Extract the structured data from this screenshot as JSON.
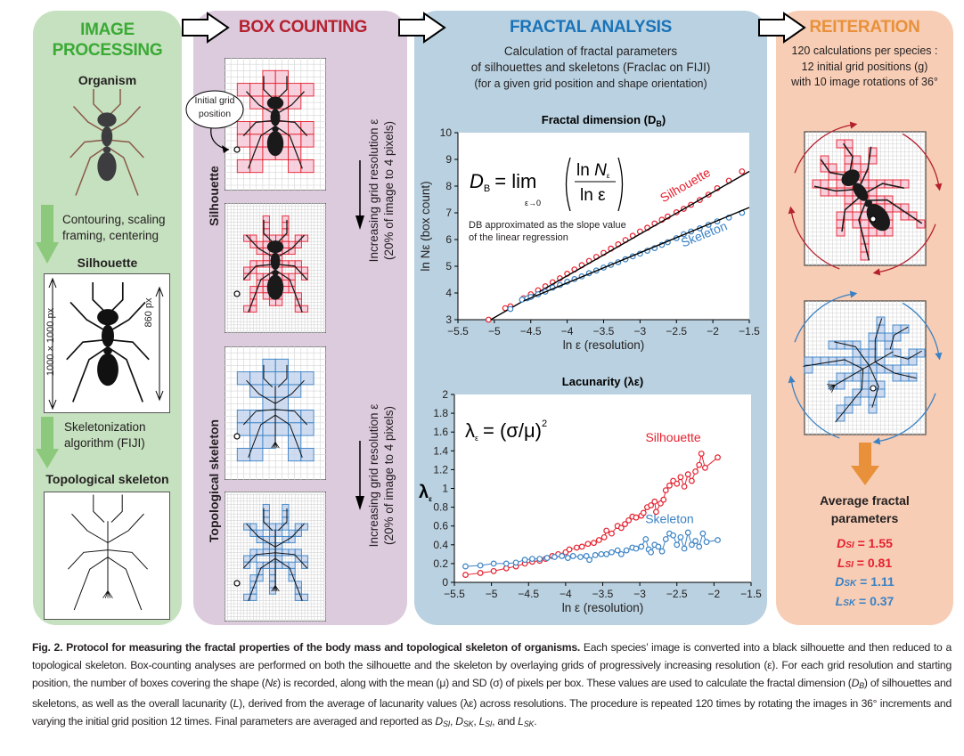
{
  "colors": {
    "green_panel": "#c6e1bf",
    "green_title": "#3aaa35",
    "green_arrow": "#8dc97c",
    "purple_panel": "#dccadd",
    "purple_title": "#b5202e",
    "blue_panel": "#b9d1e0",
    "blue_title": "#1a73b8",
    "orange_panel": "#f7cdb5",
    "orange_title": "#e8913a",
    "silhouette": "#e5202e",
    "skeleton": "#3a82c4",
    "silhouette_box_fill": "#f6c9d8",
    "skeleton_box_fill": "#c5d5ee"
  },
  "panels": {
    "image_processing": {
      "title_line1": "IMAGE",
      "title_line2": "PROCESSING",
      "organism": "Organism",
      "step1_line1": "Contouring, scaling",
      "step1_line2": "framing, centering",
      "silhouette": "Silhouette",
      "dim_frame": "1000 × 1000 px",
      "dim_body": "860 px",
      "step2_line1": "Skeletonization",
      "step2_line2": "algorithm (FIJI)",
      "skeleton": "Topological skeleton"
    },
    "box_counting": {
      "title": "BOX COUNTING",
      "callout_line1": "Initial grid",
      "callout_line2": "position",
      "row_silhouette": "Silhouette",
      "row_skeleton": "Topological skeleton",
      "resolution_line1": "Increasing grid resolution ε",
      "resolution_line2": "(20% of image to 4 pixels)"
    },
    "fractal_analysis": {
      "title": "FRACTAL ANALYSIS",
      "desc_line1": "Calculation of fractal parameters",
      "desc_line2": "of silhouettes and skeletons (Fraclac on FIJI)",
      "desc_line3": "(for a given grid position and shape orientation)"
    },
    "reiteration": {
      "title": "REITERATION",
      "desc_line1": "120 calculations per species :",
      "desc_line2": "12 initial grid positions (g)",
      "desc_line3": "with 10 image rotations of 36°",
      "results_title_line1": "Average fractal",
      "results_title_line2": "parameters",
      "results": [
        {
          "symbol": "D",
          "sub": "SI",
          "value": " = 1.55",
          "series": "silhouette"
        },
        {
          "symbol": "L",
          "sub": "SI",
          "value": " = 0.81",
          "series": "silhouette"
        },
        {
          "symbol": "D",
          "sub": "SK",
          "value": " = 1.11",
          "series": "skeleton"
        },
        {
          "symbol": "L",
          "sub": "SK",
          "value": " = 0.37",
          "series": "skeleton"
        }
      ]
    }
  },
  "chart_data": [
    {
      "type": "scatter",
      "title": "Fractal dimension (D",
      "title_sub": "B",
      "title_end": ")",
      "xlabel": "ln ε (resolution)",
      "ylabel": "ln Nε (box count)",
      "xlim": [
        -5.5,
        -1.5
      ],
      "ylim": [
        3,
        10
      ],
      "x_ticks": [
        -5.5,
        -5,
        -4.5,
        -4,
        -3.5,
        -3,
        -2.5,
        -2,
        -1.5
      ],
      "y_ticks": [
        3,
        4,
        5,
        6,
        7,
        8,
        9,
        10
      ],
      "grid": false,
      "formula": {
        "lhs": "D",
        "lhs_sub": "B",
        "eq": "= lim",
        "limit": "ε→0",
        "num": "ln  N",
        "num_sub": "ε",
        "den": "ln  ε"
      },
      "note_line1": "DB approximated as the slope value",
      "note_line2": "of the linear regression",
      "series": [
        {
          "name": "Silhouette",
          "color": "#e5202e",
          "x": [
            -5.08,
            -4.85,
            -4.78,
            -4.6,
            -4.5,
            -4.4,
            -4.3,
            -4.2,
            -4.1,
            -4.0,
            -3.9,
            -3.8,
            -3.7,
            -3.6,
            -3.5,
            -3.4,
            -3.3,
            -3.2,
            -3.1,
            -3.0,
            -2.9,
            -2.8,
            -2.7,
            -2.62,
            -2.5,
            -2.4,
            -2.3,
            -2.18,
            -2.06,
            -1.94,
            -1.78,
            -1.6
          ],
          "y": [
            3.0,
            3.43,
            3.5,
            3.8,
            3.95,
            4.1,
            4.25,
            4.4,
            4.55,
            4.72,
            4.88,
            5.04,
            5.2,
            5.35,
            5.5,
            5.66,
            5.82,
            5.98,
            6.14,
            6.3,
            6.44,
            6.6,
            6.74,
            6.86,
            7.02,
            7.15,
            7.3,
            7.48,
            7.68,
            7.92,
            8.2,
            8.55
          ],
          "regression": {
            "x": [
              -5.05,
              -1.5
            ],
            "y": [
              3.0,
              8.55
            ]
          }
        },
        {
          "name": "Skeleton",
          "color": "#3a82c4",
          "x": [
            -4.78,
            -4.62,
            -4.55,
            -4.5,
            -4.4,
            -4.3,
            -4.2,
            -4.1,
            -4.0,
            -3.9,
            -3.8,
            -3.7,
            -3.6,
            -3.5,
            -3.4,
            -3.3,
            -3.2,
            -3.1,
            -3.0,
            -2.9,
            -2.8,
            -2.7,
            -2.62,
            -2.5,
            -2.4,
            -2.3,
            -2.18,
            -2.06,
            -1.94,
            -1.78,
            -1.6
          ],
          "y": [
            3.4,
            3.75,
            3.8,
            3.85,
            3.95,
            4.05,
            4.2,
            4.3,
            4.42,
            4.52,
            4.62,
            4.74,
            4.84,
            4.95,
            5.05,
            5.15,
            5.26,
            5.37,
            5.47,
            5.58,
            5.68,
            5.8,
            5.9,
            6.05,
            6.2,
            6.3,
            6.42,
            6.55,
            6.68,
            6.82,
            7.0
          ],
          "regression": {
            "x": [
              -4.6,
              -1.5
            ],
            "y": [
              3.7,
              7.2
            ]
          }
        }
      ]
    },
    {
      "type": "line",
      "title": "Lacunarity (λε)",
      "xlabel": "ln ε (resolution)",
      "ylabel": "λ",
      "ylabel_sub": "ε",
      "xlim": [
        -5.5,
        -1.5
      ],
      "ylim": [
        0,
        2
      ],
      "x_ticks": [
        -5.5,
        -5,
        -4.5,
        -4,
        -3.5,
        -3,
        -2.5,
        -2,
        -1.5
      ],
      "y_ticks": [
        0,
        0.2,
        0.4,
        0.6,
        0.8,
        1,
        1.2,
        1.4,
        1.6,
        1.8,
        2
      ],
      "grid": false,
      "formula": {
        "lhs": "λ",
        "lhs_sub": "ε",
        "eq": "= (σ/μ)",
        "sup": "2"
      },
      "series": [
        {
          "name": "Silhouette",
          "color": "#e5202e",
          "x": [
            -5.35,
            -5.15,
            -4.97,
            -4.8,
            -4.67,
            -4.55,
            -4.45,
            -4.35,
            -4.27,
            -4.18,
            -4.1,
            -4.0,
            -3.95,
            -3.85,
            -3.78,
            -3.7,
            -3.62,
            -3.55,
            -3.48,
            -3.45,
            -3.38,
            -3.3,
            -3.25,
            -3.2,
            -3.15,
            -3.1,
            -3.05,
            -2.98,
            -2.95,
            -2.9,
            -2.85,
            -2.8,
            -2.78,
            -2.72,
            -2.68,
            -2.65,
            -2.6,
            -2.55,
            -2.5,
            -2.45,
            -2.4,
            -2.35,
            -2.3,
            -2.25,
            -2.2,
            -2.17,
            -2.12,
            -1.95
          ],
          "y": [
            0.08,
            0.1,
            0.12,
            0.15,
            0.17,
            0.2,
            0.22,
            0.23,
            0.25,
            0.28,
            0.3,
            0.32,
            0.35,
            0.37,
            0.38,
            0.41,
            0.42,
            0.45,
            0.48,
            0.55,
            0.52,
            0.6,
            0.58,
            0.62,
            0.66,
            0.7,
            0.69,
            0.71,
            0.74,
            0.8,
            0.82,
            0.86,
            0.75,
            0.84,
            0.88,
            0.98,
            1.03,
            1.08,
            1.05,
            1.12,
            1.02,
            1.15,
            1.08,
            1.18,
            1.25,
            1.37,
            1.22,
            1.33
          ]
        },
        {
          "name": "Skeleton",
          "color": "#3a82c4",
          "x": [
            -5.35,
            -5.15,
            -4.97,
            -4.8,
            -4.67,
            -4.55,
            -4.45,
            -4.35,
            -4.25,
            -4.15,
            -4.05,
            -3.97,
            -3.9,
            -3.8,
            -3.72,
            -3.68,
            -3.6,
            -3.52,
            -3.45,
            -3.38,
            -3.3,
            -3.25,
            -3.18,
            -3.1,
            -3.05,
            -2.98,
            -2.92,
            -2.88,
            -2.85,
            -2.8,
            -2.75,
            -2.7,
            -2.65,
            -2.6,
            -2.55,
            -2.5,
            -2.45,
            -2.4,
            -2.35,
            -2.3,
            -2.25,
            -2.2,
            -2.15,
            -2.1,
            -1.95
          ],
          "y": [
            0.17,
            0.18,
            0.2,
            0.2,
            0.21,
            0.24,
            0.25,
            0.25,
            0.26,
            0.27,
            0.28,
            0.26,
            0.28,
            0.27,
            0.28,
            0.24,
            0.29,
            0.3,
            0.3,
            0.32,
            0.34,
            0.3,
            0.34,
            0.37,
            0.36,
            0.38,
            0.46,
            0.35,
            0.32,
            0.4,
            0.38,
            0.33,
            0.46,
            0.52,
            0.5,
            0.4,
            0.48,
            0.36,
            0.53,
            0.4,
            0.44,
            0.38,
            0.52,
            0.43,
            0.45
          ]
        }
      ]
    }
  ],
  "caption": {
    "bold": "Fig. 2. Protocol for measuring the fractal properties of the body mass and topological skeleton of organisms.",
    "p1": " Each species’ image is converted into a black silhouette and then reduced to a topological skeleton. Box-counting analyses are performed on both the silhouette and the skeleton by overlaying grids of progressively increasing resolution (ε). For each grid resolution and starting position, the number of boxes covering the shape (",
    "ne": "Nε",
    "p2": ") is recorded, along with the mean (μ) and SD (σ) of pixels per box. These values are used to calculate the fractal dimension (",
    "db": "D",
    "db_sub": "B",
    "p3": ") of silhouettes and skeletons, as well as the overall lacunarity (",
    "l": "L",
    "p4": "), derived from the average of lacunarity values (λε) across resolutions. The procedure is repeated 120 times by rotating the images in 36° increments and varying the initial grid position 12 times. Final parameters are averaged and reported as ",
    "d": "D",
    "si": "SI",
    "sk": "SK",
    "comma": ", ",
    "and": ", and ",
    "end": "."
  }
}
